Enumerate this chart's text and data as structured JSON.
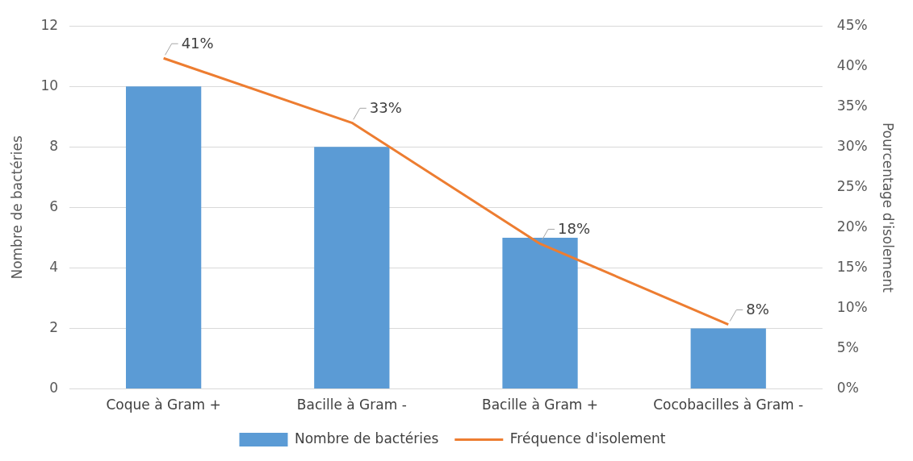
{
  "chart_data": {
    "type": "bar",
    "categories": [
      "Coque à Gram +",
      "Bacille à Gram -",
      "Bacille à Gram +",
      "Cocobacilles à Gram -"
    ],
    "series": [
      {
        "name": "Nombre de bactéries",
        "color": "#5b9bd5",
        "values": [
          10,
          8,
          5,
          2
        ]
      },
      {
        "name": "Fréquence d'isolement",
        "type": "line",
        "axis": "y2",
        "color": "#ed7d31",
        "values": [
          41,
          33,
          18,
          8
        ],
        "value_labels": [
          "41%",
          "33%",
          "18%",
          "8%"
        ]
      }
    ],
    "ylabel": "Nombre de bactéries",
    "y2label": "Pourcentage d'isolement",
    "ylim": [
      0,
      12
    ],
    "yticks": [
      0,
      2,
      4,
      6,
      8,
      10,
      12
    ],
    "y2lim": [
      0,
      45
    ],
    "y2ticks": [
      {
        "value": 0,
        "label": "0%"
      },
      {
        "value": 5,
        "label": "5%"
      },
      {
        "value": 10,
        "label": "10%"
      },
      {
        "value": 15,
        "label": "15%"
      },
      {
        "value": 20,
        "label": "20%"
      },
      {
        "value": 25,
        "label": "25%"
      },
      {
        "value": 30,
        "label": "30%"
      },
      {
        "value": 35,
        "label": "35%"
      },
      {
        "value": 40,
        "label": "40%"
      },
      {
        "value": 45,
        "label": "45%"
      }
    ],
    "grid": "y",
    "legend": "bottom",
    "marker": "none",
    "line_style": "solid"
  }
}
